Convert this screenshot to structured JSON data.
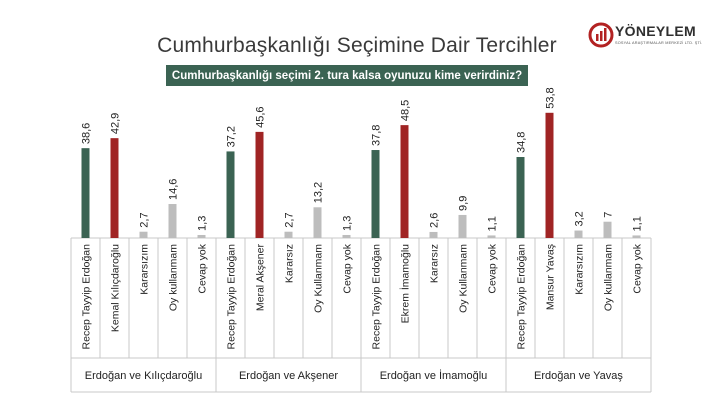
{
  "title": "Cumhurbaşkanlığı Seçimine Dair Tercihler",
  "logo": {
    "brand": "YÖNEYLEM",
    "tagline": "SOSYAL ARAŞTIRMALAR MERKEZİ LTD. ŞTİ."
  },
  "colors": {
    "erdogan": "#3b6353",
    "opponent": "#a02424",
    "other": "#bdbdbd",
    "banner": "#3b6353"
  },
  "chart_data": {
    "type": "bar",
    "title": "Cumhurbaşkanlığı seçimi 2. tura kalsa oyunuzu kime verirdiniz?",
    "xlabel": "",
    "ylabel": "",
    "ylim": [
      0,
      55
    ],
    "grid": false,
    "groups": [
      {
        "name": "Erdoğan ve Kılıçdaroğlu",
        "categories": [
          "Recep Tayyip Erdoğan",
          "Kemal Kılıçdaroğlu",
          "Kararsızım",
          "Oy kullanmam",
          "Cevap yok"
        ],
        "values": [
          38.6,
          42.9,
          2.7,
          14.6,
          1.3
        ],
        "labels": [
          "38,6",
          "42,9",
          "2,7",
          "14,6",
          "1,3"
        ],
        "colors": [
          "erdogan",
          "opponent",
          "other",
          "other",
          "other"
        ]
      },
      {
        "name": "Erdoğan ve Akşener",
        "categories": [
          "Recep Tayyip Erdoğan",
          "Meral Akşener",
          "Kararsız",
          "Oy Kullanmam",
          "Cevap yok"
        ],
        "values": [
          37.2,
          45.6,
          2.7,
          13.2,
          1.3
        ],
        "labels": [
          "37,2",
          "45,6",
          "2,7",
          "13,2",
          "1,3"
        ],
        "colors": [
          "erdogan",
          "opponent",
          "other",
          "other",
          "other"
        ]
      },
      {
        "name": "Erdoğan ve İmamoğlu",
        "categories": [
          "Recep Tayyip Erdoğan",
          "Ekrem İmamoğlu",
          "Kararsız",
          "Oy Kullanmam",
          "Cevap yok"
        ],
        "values": [
          37.8,
          48.5,
          2.6,
          9.9,
          1.1
        ],
        "labels": [
          "37,8",
          "48,5",
          "2,6",
          "9,9",
          "1,1"
        ],
        "colors": [
          "erdogan",
          "opponent",
          "other",
          "other",
          "other"
        ]
      },
      {
        "name": "Erdoğan ve Yavaş",
        "categories": [
          "Recep Tayyip Erdoğan",
          "Mansur Yavaş",
          "Kararsızım",
          "Oy kullanmam",
          "Cevap yok"
        ],
        "values": [
          34.8,
          53.8,
          3.2,
          7,
          1.1
        ],
        "labels": [
          "34,8",
          "53,8",
          "3,2",
          "7",
          "1,1"
        ],
        "colors": [
          "erdogan",
          "opponent",
          "other",
          "other",
          "other"
        ]
      }
    ]
  }
}
